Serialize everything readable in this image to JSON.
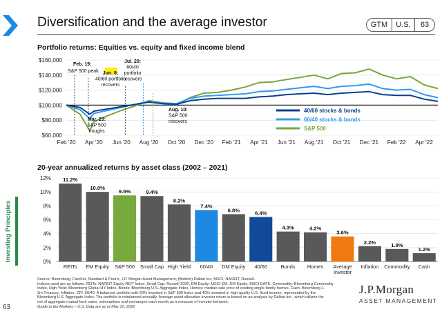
{
  "header": {
    "title": "Diversification and the average investor",
    "badges": [
      "GTM",
      "U.S.",
      "63"
    ]
  },
  "sidebar": {
    "section_label": "Investing Principles",
    "page_number": "63"
  },
  "colors": {
    "accent_green": "#2a8a4a",
    "series_40_60": "#0a3f8c",
    "series_60_40": "#2f9af2",
    "series_sp500": "#79a53b",
    "bar_gray": "#595959",
    "bar_green": "#77a93c",
    "bar_light_blue": "#1e88e5",
    "bar_navy": "#124a9a",
    "bar_orange": "#ef7b10"
  },
  "chart_data": [
    {
      "type": "line",
      "title": "Portfolio returns: Equities vs. equity and fixed income blend",
      "x_ticks": [
        "Feb '20",
        "Apr '20",
        "Jun '20",
        "Aug '20",
        "Oct '20",
        "Dec '20",
        "Feb '21",
        "Apr '21",
        "Jun '21",
        "Aug '21",
        "Oct '21",
        "Dec '21",
        "Feb '22",
        "Apr '22"
      ],
      "y_ticks": [
        "$60,000",
        "$80,000",
        "$100,000",
        "$120,000",
        "$140,000",
        "$160,000"
      ],
      "ylim": [
        60000,
        160000
      ],
      "x_range": [
        "2020-02",
        "2022-05"
      ],
      "legend_position": "right",
      "series": [
        {
          "name": "40/60 stocks & bonds",
          "x": [
            "2020-02",
            "2020-03",
            "2020-03",
            "2020-04",
            "2020-05",
            "2020-06",
            "2020-07",
            "2020-08",
            "2020-09",
            "2020-10",
            "2020-11",
            "2020-12",
            "2021-01",
            "2021-02",
            "2021-03",
            "2021-04",
            "2021-05",
            "2021-06",
            "2021-07",
            "2021-08",
            "2021-09",
            "2021-10",
            "2021-11",
            "2021-12",
            "2022-01",
            "2022-02",
            "2022-03",
            "2022-04",
            "2022-05"
          ],
          "values": [
            100000,
            97000,
            88000,
            92000,
            95000,
            98000,
            101000,
            104000,
            102000,
            101000,
            106000,
            108000,
            109000,
            109000,
            109000,
            111000,
            112000,
            114000,
            115000,
            116000,
            114000,
            116000,
            117000,
            118000,
            114000,
            113000,
            113000,
            108000,
            105000
          ]
        },
        {
          "name": "60/40 stocks & bonds",
          "x": [
            "2020-02",
            "2020-03",
            "2020-03",
            "2020-04",
            "2020-05",
            "2020-06",
            "2020-07",
            "2020-08",
            "2020-09",
            "2020-10",
            "2020-11",
            "2020-12",
            "2021-01",
            "2021-02",
            "2021-03",
            "2021-04",
            "2021-05",
            "2021-06",
            "2021-07",
            "2021-08",
            "2021-09",
            "2021-10",
            "2021-11",
            "2021-12",
            "2022-01",
            "2022-02",
            "2022-03",
            "2022-04",
            "2022-05"
          ],
          "values": [
            100000,
            94000,
            82000,
            89000,
            93000,
            97000,
            101000,
            105000,
            103000,
            102000,
            109000,
            112000,
            113000,
            114000,
            115000,
            118000,
            119000,
            121000,
            123000,
            125000,
            122000,
            125000,
            126000,
            128000,
            122000,
            120000,
            121000,
            114000,
            110000
          ]
        },
        {
          "name": "S&P 500",
          "x": [
            "2020-02",
            "2020-03",
            "2020-03",
            "2020-04",
            "2020-05",
            "2020-06",
            "2020-07",
            "2020-08",
            "2020-09",
            "2020-10",
            "2020-11",
            "2020-12",
            "2021-01",
            "2021-02",
            "2021-03",
            "2021-04",
            "2021-05",
            "2021-06",
            "2021-07",
            "2021-08",
            "2021-09",
            "2021-10",
            "2021-11",
            "2021-12",
            "2022-01",
            "2022-02",
            "2022-03",
            "2022-04",
            "2022-05"
          ],
          "values": [
            100000,
            88000,
            66000,
            78000,
            86000,
            93000,
            99000,
            106000,
            103000,
            101000,
            110000,
            116000,
            117000,
            120000,
            124000,
            130000,
            131000,
            134000,
            137000,
            140000,
            135000,
            142000,
            143000,
            148000,
            140000,
            135000,
            138000,
            127000,
            122000
          ]
        }
      ],
      "annotations": [
        {
          "label_lines": [
            "Feb. 19:",
            "S&P 500 peak"
          ],
          "highlight": "peak",
          "x": "2020-02"
        },
        {
          "label_lines": [
            "Mar. 23:",
            "S&P 500",
            "troughs"
          ],
          "x": "2020-03"
        },
        {
          "label_lines": [
            "Jun. 8:",
            "40/60 portfolio",
            "recovers"
          ],
          "x": "2020-06"
        },
        {
          "label_lines": [
            "Jul. 20:",
            "60/40",
            "portfolio",
            "recovers"
          ],
          "x": "2020-07"
        },
        {
          "label_lines": [
            "Aug. 10:",
            "S&P 500",
            "recovers"
          ],
          "x": "2020-08"
        }
      ]
    },
    {
      "type": "bar",
      "title": "20-year annualized returns by asset class (2002 – 2021)",
      "categories": [
        "REITs",
        "EM Equity",
        "S&P 500",
        "Small Cap",
        "High Yield",
        "60/40",
        "DM Equity",
        "40/60",
        "Bonds",
        "Homes",
        "Average Investor",
        "Inflation",
        "Commodity",
        "Cash"
      ],
      "values": [
        11.2,
        10.0,
        9.5,
        9.4,
        8.2,
        7.4,
        6.8,
        6.4,
        4.3,
        4.2,
        3.6,
        2.2,
        1.8,
        1.2
      ],
      "value_labels": [
        "11.2%",
        "10.0%",
        "9.5%",
        "9.4%",
        "8.2%",
        "7.4%",
        "6.8%",
        "6.4%",
        "4.3%",
        "4.2%",
        "3.6%",
        "2.2%",
        "1.8%",
        "1.2%"
      ],
      "colors": [
        "#595959",
        "#595959",
        "#77a93c",
        "#595959",
        "#595959",
        "#1e88e5",
        "#595959",
        "#124a9a",
        "#595959",
        "#595959",
        "#ef7b10",
        "#595959",
        "#595959",
        "#595959"
      ],
      "y_ticks": [
        "0%",
        "2%",
        "4%",
        "6%",
        "8%",
        "10%",
        "12%"
      ],
      "ylim": [
        0,
        12
      ]
    }
  ],
  "footnote": {
    "lines": [
      "Source: Bloomberg, FactSet, Standard & Poor's, J.P. Morgan Asset Management; (Bottom) Dalbar Inc, MSCI, NAREIT, Russell.",
      "Indices used are as follows: REITs: NAREIT Equity REIT Index, Small Cap: Russell 2000, EM Equity: MSCI EM, DM Equity: MSCI EAFE, Commodity: Bloomberg Commodity",
      "Index, High Yield: Bloomberg Global HY Index, Bonds: Bloomberg U.S. Aggregate Index, Homes: median sale price of existing single-family homes, Cash: Bloomberg 1-",
      "3m Treasury, Inflation: CPI. 60/40: A balanced portfolio with 60% invested in S&P 500 Index and 40% invested in high-quality U.S. fixed income, represented by the",
      "Bloomberg U.S. Aggregate Index. The portfolio is rebalanced annually. Average asset allocation investor return is based on an analysis by Dalbar Inc., which utilizes the",
      "net of aggregate mutual fund sales, redemptions and exchanges each month as a measure of investor behavior.",
      "Guide to the Markets – U.S. Data are as of May 10, 2022."
    ]
  },
  "logo": {
    "main": "J.P.Morgan",
    "sub": "ASSET MANAGEMENT"
  }
}
